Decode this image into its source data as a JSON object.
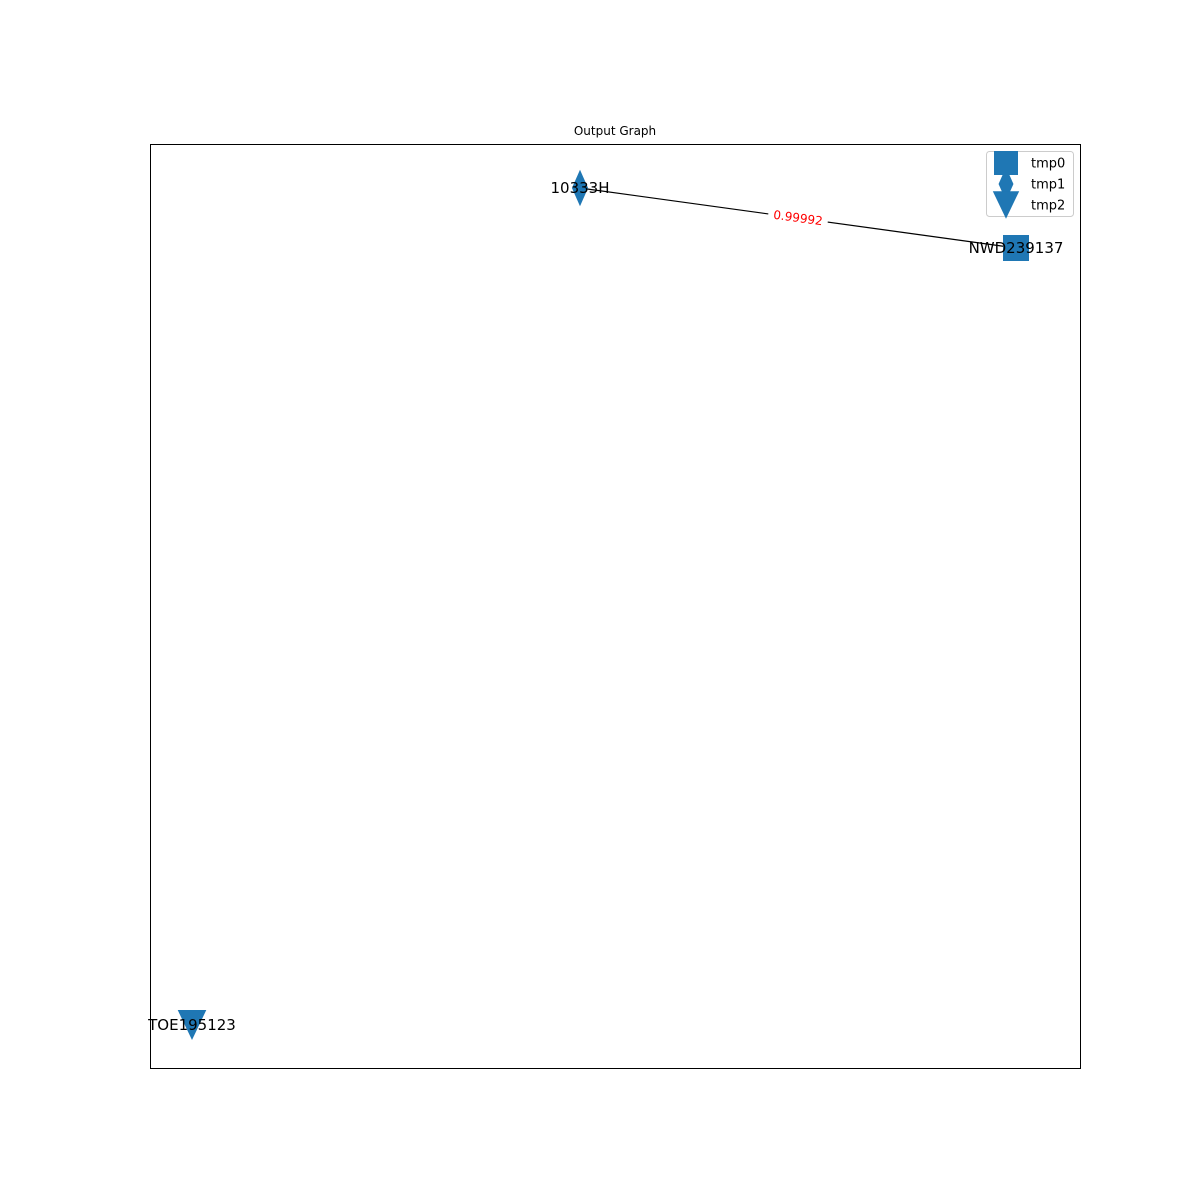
{
  "title": "Output Graph",
  "colors": {
    "node": "#1f77b4",
    "edge": "#000000",
    "edge_label": "#ff0000",
    "frame": "#000000",
    "legend_border": "#cccccc"
  },
  "legend": [
    {
      "label": "tmp0",
      "marker": "square"
    },
    {
      "label": "tmp1",
      "marker": "diamond"
    },
    {
      "label": "tmp2",
      "marker": "triangle-down"
    }
  ],
  "nodes": [
    {
      "id": "10333H",
      "label": "10333H",
      "group": "tmp1"
    },
    {
      "id": "NWD239137",
      "label": "NWD239137",
      "group": "tmp0"
    },
    {
      "id": "TOE195123",
      "label": "TOE195123",
      "group": "tmp2"
    }
  ],
  "edges": [
    {
      "source": "10333H",
      "target": "NWD239137",
      "weight": "0.99992"
    }
  ]
}
